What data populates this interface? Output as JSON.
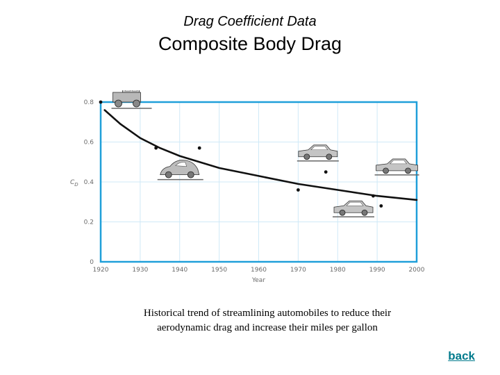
{
  "header": {
    "subtitle": "Drag Coefficient Data",
    "title": "Composite Body Drag"
  },
  "caption": {
    "line1": "Historical trend of streamlining automobiles to reduce their",
    "line2": "aerodynamic drag and increase their miles per gallon"
  },
  "nav": {
    "back_label": "back"
  },
  "chart_data": {
    "type": "scatter",
    "xlabel": "Year",
    "ylabel": "C_D",
    "xlim": [
      1920,
      2000
    ],
    "ylim": [
      0,
      0.8
    ],
    "x_ticks": [
      "1920",
      "1930",
      "1940",
      "1950",
      "1960",
      "1970",
      "1980",
      "1990",
      "2000"
    ],
    "y_ticks": [
      "0",
      "0.2",
      "0.4",
      "0.6",
      "0.8"
    ],
    "grid": true,
    "points": [
      {
        "x": 1920,
        "y": 0.8
      },
      {
        "x": 1934,
        "y": 0.57
      },
      {
        "x": 1945,
        "y": 0.57
      },
      {
        "x": 1970,
        "y": 0.36
      },
      {
        "x": 1977,
        "y": 0.45
      },
      {
        "x": 1989,
        "y": 0.33
      },
      {
        "x": 1991,
        "y": 0.28
      }
    ],
    "trend_curve": [
      {
        "x": 1921,
        "y": 0.76
      },
      {
        "x": 1925,
        "y": 0.69
      },
      {
        "x": 1930,
        "y": 0.62
      },
      {
        "x": 1935,
        "y": 0.57
      },
      {
        "x": 1940,
        "y": 0.53
      },
      {
        "x": 1945,
        "y": 0.5
      },
      {
        "x": 1950,
        "y": 0.47
      },
      {
        "x": 1960,
        "y": 0.43
      },
      {
        "x": 1970,
        "y": 0.39
      },
      {
        "x": 1980,
        "y": 0.36
      },
      {
        "x": 1990,
        "y": 0.33
      },
      {
        "x": 2000,
        "y": 0.31
      }
    ],
    "car_icons": [
      {
        "name": "1920s-sedan-icon",
        "x": 1928,
        "y": 0.8
      },
      {
        "name": "1940s-coupe-icon",
        "x": 1940,
        "y": 0.45
      },
      {
        "name": "1970s-sedan-icon",
        "x": 1975,
        "y": 0.54
      },
      {
        "name": "1990s-sedan-icon",
        "x": 1995,
        "y": 0.47
      },
      {
        "name": "1980s-sedan-icon",
        "x": 1984,
        "y": 0.26
      }
    ]
  }
}
